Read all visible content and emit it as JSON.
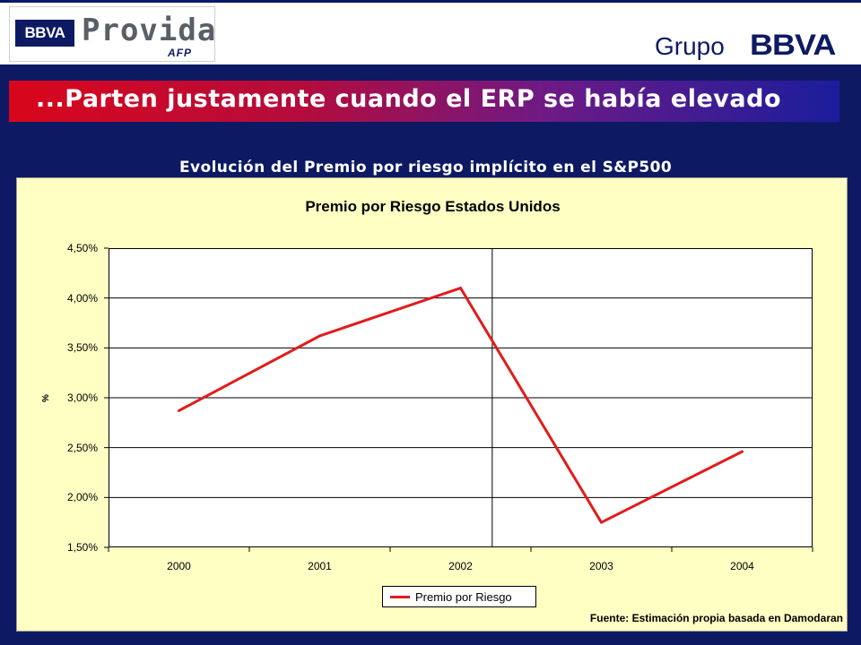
{
  "header": {
    "provida_badge": "BBVA",
    "provida_name": "Provida",
    "provida_sub": "AFP",
    "grupo_label": "Grupo",
    "grupo_logo": "BBVA"
  },
  "slide": {
    "title": "...Parten justamente cuando el ERP se había elevado",
    "subtitle": "Evolución del Premio por riesgo implícito en el S&P500",
    "source": "Fuente: Estimación propia basada en Damodaran"
  },
  "colors": {
    "background": "#0d1a63",
    "panel": "#ffffc4",
    "series": "#e21b1b"
  },
  "chart_data": {
    "type": "line",
    "title": "Premio por Riesgo Estados Unidos",
    "ylabel": "%",
    "xlabel": "",
    "categories": [
      "2000",
      "2001",
      "2002",
      "2003",
      "2004"
    ],
    "series": [
      {
        "name": "Premio por Riesgo",
        "values": [
          2.87,
          3.62,
          4.1,
          1.75,
          2.46
        ]
      }
    ],
    "ylim": [
      1.5,
      4.5
    ],
    "yticks": [
      "4,50%",
      "4,00%",
      "3,50%",
      "3,00%",
      "2,50%",
      "2,00%",
      "1,50%"
    ],
    "grid": "horizontal",
    "legend": "bottom"
  }
}
